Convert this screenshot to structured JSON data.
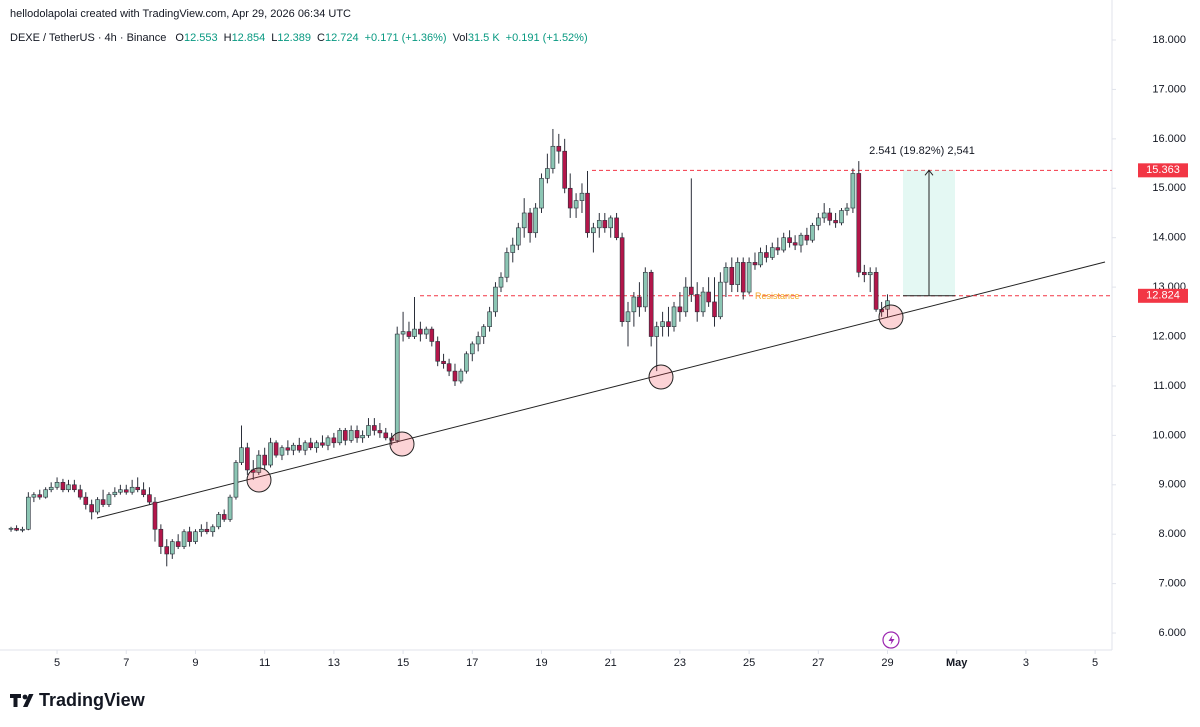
{
  "header": {
    "credit": "hellodolapolai created with TradingView.com, Apr 29, 2026 06:34 UTC",
    "symbol": "DEXE / TetherUS · 4h · Binance",
    "ohlc": [
      {
        "label": "O",
        "value": 12.553
      },
      {
        "label": "H",
        "value": 12.854
      },
      {
        "label": "L",
        "value": 12.389
      },
      {
        "label": "C",
        "value": 12.724
      }
    ],
    "change": "+0.171 (+1.36%)",
    "volume_label": "Vol",
    "volume": "31.5 K",
    "volume_change": "+0.191 (+1.52%)"
  },
  "brand": "TradingView",
  "chart_data": {
    "type": "candlestick",
    "up_color": "#8cc6b4",
    "down_color": "#b3164a",
    "xlim": [
      3.64,
      35.43
    ],
    "ylim": [
      5.657,
      18.243
    ],
    "xticks": [
      5,
      7,
      9,
      11,
      13,
      15,
      17,
      19,
      21,
      23,
      25,
      27,
      29,
      {
        "value": 31,
        "label": "May"
      },
      {
        "value": 33,
        "label": "3"
      },
      {
        "value": 35,
        "label": "5"
      }
    ],
    "yticks": [
      {
        "value": 6,
        "label": "6.000"
      },
      {
        "value": 7,
        "label": "7.000"
      },
      {
        "value": 8,
        "label": "8.000"
      },
      {
        "value": 9,
        "label": "9.000"
      },
      {
        "value": 10,
        "label": "10.000"
      },
      {
        "value": 11,
        "label": "11.000"
      },
      {
        "value": 12,
        "label": "12.000"
      },
      {
        "value": 13,
        "label": "13.000"
      },
      {
        "value": 14,
        "label": "14.000"
      },
      {
        "value": 15,
        "label": "15.000"
      },
      {
        "value": 16,
        "label": "16.000"
      },
      {
        "value": 17,
        "label": "17.000"
      },
      {
        "value": 18,
        "label": "18.000"
      }
    ],
    "levels": [
      15.363,
      12.824
    ],
    "level_color": "#f23645",
    "annotations": {
      "measure": "2.541 (19.82%) 2,541",
      "resistance": "Resistance"
    },
    "x": [
      3.67,
      3.83,
      4,
      4.17,
      4.33,
      4.5,
      4.67,
      4.83,
      5,
      5.17,
      5.33,
      5.5,
      5.67,
      5.83,
      6,
      6.17,
      6.33,
      6.5,
      6.67,
      6.83,
      7,
      7.17,
      7.33,
      7.5,
      7.67,
      7.83,
      8,
      8.17,
      8.33,
      8.5,
      8.67,
      8.83,
      9,
      9.17,
      9.33,
      9.5,
      9.67,
      9.83,
      10,
      10.17,
      10.33,
      10.5,
      10.67,
      10.83,
      11,
      11.17,
      11.33,
      11.5,
      11.67,
      11.83,
      12,
      12.17,
      12.33,
      12.5,
      12.67,
      12.83,
      13,
      13.17,
      13.33,
      13.5,
      13.67,
      13.83,
      14,
      14.17,
      14.33,
      14.5,
      14.67,
      14.83,
      15,
      15.17,
      15.33,
      15.5,
      15.67,
      15.83,
      16,
      16.17,
      16.33,
      16.5,
      16.67,
      16.83,
      17,
      17.17,
      17.33,
      17.5,
      17.67,
      17.83,
      18,
      18.17,
      18.33,
      18.5,
      18.67,
      18.83,
      19,
      19.17,
      19.33,
      19.5,
      19.67,
      19.83,
      20,
      20.17,
      20.33,
      20.5,
      20.67,
      20.83,
      21,
      21.17,
      21.33,
      21.5,
      21.67,
      21.83,
      22,
      22.17,
      22.33,
      22.5,
      22.67,
      22.83,
      23,
      23.17,
      23.33,
      23.5,
      23.67,
      23.83,
      24,
      24.17,
      24.33,
      24.5,
      24.67,
      24.83,
      25,
      25.17,
      25.33,
      25.5,
      25.67,
      25.83,
      26,
      26.17,
      26.33,
      26.5,
      26.67,
      26.83,
      27,
      27.17,
      27.33,
      27.5,
      27.67,
      27.83,
      28,
      28.17,
      28.33,
      28.5,
      28.67,
      28.83,
      29
    ],
    "candles": [
      [
        8.1,
        8.15,
        8.05,
        8.12
      ],
      [
        8.12,
        8.18,
        8.06,
        8.08
      ],
      [
        8.08,
        8.15,
        8.04,
        8.1
      ],
      [
        8.1,
        8.85,
        8.08,
        8.75
      ],
      [
        8.75,
        8.85,
        8.65,
        8.8
      ],
      [
        8.8,
        8.9,
        8.7,
        8.75
      ],
      [
        8.75,
        8.95,
        8.72,
        8.9
      ],
      [
        8.9,
        9.05,
        8.85,
        8.95
      ],
      [
        8.95,
        9.15,
        8.9,
        9.05
      ],
      [
        9.05,
        9.12,
        8.85,
        8.9
      ],
      [
        8.9,
        9.1,
        8.85,
        9.0
      ],
      [
        9.0,
        9.1,
        8.85,
        8.9
      ],
      [
        8.9,
        9.0,
        8.7,
        8.75
      ],
      [
        8.75,
        8.85,
        8.5,
        8.6
      ],
      [
        8.6,
        8.7,
        8.3,
        8.45
      ],
      [
        8.45,
        8.75,
        8.4,
        8.7
      ],
      [
        8.7,
        8.9,
        8.55,
        8.6
      ],
      [
        8.6,
        8.85,
        8.55,
        8.8
      ],
      [
        8.8,
        8.95,
        8.75,
        8.85
      ],
      [
        8.85,
        9.0,
        8.8,
        8.9
      ],
      [
        8.9,
        9.0,
        8.8,
        8.85
      ],
      [
        8.85,
        9.1,
        8.8,
        8.95
      ],
      [
        8.95,
        9.15,
        8.85,
        8.9
      ],
      [
        8.9,
        9.05,
        8.75,
        8.8
      ],
      [
        8.8,
        8.95,
        8.6,
        8.65
      ],
      [
        8.65,
        8.75,
        7.85,
        8.1
      ],
      [
        8.1,
        8.2,
        7.6,
        7.75
      ],
      [
        7.75,
        7.9,
        7.35,
        7.6
      ],
      [
        7.6,
        7.9,
        7.5,
        7.85
      ],
      [
        7.85,
        8.0,
        7.7,
        7.75
      ],
      [
        7.75,
        8.1,
        7.7,
        8.05
      ],
      [
        8.05,
        8.15,
        7.75,
        7.85
      ],
      [
        7.85,
        8.1,
        7.8,
        8.05
      ],
      [
        8.05,
        8.2,
        7.95,
        8.1
      ],
      [
        8.1,
        8.25,
        8.0,
        8.05
      ],
      [
        8.05,
        8.2,
        7.95,
        8.15
      ],
      [
        8.15,
        8.45,
        8.1,
        8.4
      ],
      [
        8.4,
        8.5,
        8.25,
        8.3
      ],
      [
        8.3,
        8.8,
        8.25,
        8.75
      ],
      [
        8.75,
        9.5,
        8.7,
        9.45
      ],
      [
        9.45,
        10.2,
        9.4,
        9.75
      ],
      [
        9.75,
        9.85,
        9.2,
        9.3
      ],
      [
        9.3,
        9.5,
        9.1,
        9.25
      ],
      [
        9.25,
        9.7,
        9.2,
        9.6
      ],
      [
        9.6,
        9.75,
        9.3,
        9.4
      ],
      [
        9.4,
        9.95,
        9.35,
        9.85
      ],
      [
        9.85,
        9.9,
        9.55,
        9.6
      ],
      [
        9.6,
        9.8,
        9.5,
        9.75
      ],
      [
        9.75,
        9.9,
        9.6,
        9.7
      ],
      [
        9.7,
        9.85,
        9.6,
        9.8
      ],
      [
        9.8,
        9.95,
        9.65,
        9.7
      ],
      [
        9.7,
        9.9,
        9.6,
        9.85
      ],
      [
        9.85,
        9.95,
        9.7,
        9.75
      ],
      [
        9.75,
        9.9,
        9.65,
        9.85
      ],
      [
        9.85,
        10.0,
        9.75,
        9.8
      ],
      [
        9.8,
        10.0,
        9.7,
        9.95
      ],
      [
        9.95,
        10.05,
        9.75,
        9.85
      ],
      [
        9.85,
        10.15,
        9.8,
        10.1
      ],
      [
        10.1,
        10.15,
        9.8,
        9.9
      ],
      [
        9.9,
        10.2,
        9.85,
        10.1
      ],
      [
        10.1,
        10.2,
        9.85,
        9.95
      ],
      [
        9.95,
        10.1,
        9.85,
        10.0
      ],
      [
        10.0,
        10.35,
        9.95,
        10.2
      ],
      [
        10.2,
        10.35,
        10.0,
        10.1
      ],
      [
        10.1,
        10.25,
        9.95,
        10.05
      ],
      [
        10.05,
        10.15,
        9.9,
        9.95
      ],
      [
        9.95,
        10.05,
        9.8,
        9.9
      ],
      [
        9.9,
        12.2,
        9.85,
        12.05
      ],
      [
        12.05,
        12.5,
        11.9,
        12.1
      ],
      [
        12.1,
        12.3,
        11.95,
        12.0
      ],
      [
        12.0,
        12.8,
        11.95,
        12.15
      ],
      [
        12.15,
        12.3,
        11.9,
        12.05
      ],
      [
        12.05,
        12.2,
        11.95,
        12.15
      ],
      [
        12.15,
        12.2,
        11.8,
        11.9
      ],
      [
        11.9,
        12.0,
        11.4,
        11.5
      ],
      [
        11.5,
        11.65,
        11.35,
        11.45
      ],
      [
        11.45,
        11.55,
        11.2,
        11.3
      ],
      [
        11.3,
        11.45,
        11.0,
        11.1
      ],
      [
        11.1,
        11.35,
        11.05,
        11.3
      ],
      [
        11.3,
        11.7,
        11.25,
        11.65
      ],
      [
        11.65,
        11.9,
        11.5,
        11.85
      ],
      [
        11.85,
        12.1,
        11.7,
        12.0
      ],
      [
        12.0,
        12.25,
        11.85,
        12.2
      ],
      [
        12.2,
        12.6,
        12.1,
        12.5
      ],
      [
        12.5,
        13.1,
        12.4,
        13.0
      ],
      [
        13.0,
        13.3,
        12.9,
        13.2
      ],
      [
        13.2,
        13.8,
        13.1,
        13.7
      ],
      [
        13.7,
        14.0,
        13.5,
        13.85
      ],
      [
        13.85,
        14.3,
        13.75,
        14.2
      ],
      [
        14.2,
        14.8,
        14.0,
        14.5
      ],
      [
        14.5,
        14.6,
        13.9,
        14.1
      ],
      [
        14.1,
        14.7,
        14.0,
        14.6
      ],
      [
        14.6,
        15.3,
        14.5,
        15.2
      ],
      [
        15.2,
        15.7,
        15.1,
        15.4
      ],
      [
        15.4,
        16.2,
        15.3,
        15.85
      ],
      [
        15.85,
        16.1,
        15.5,
        15.75
      ],
      [
        15.75,
        16.0,
        14.9,
        15.0
      ],
      [
        15.0,
        15.3,
        14.4,
        14.6
      ],
      [
        14.6,
        14.9,
        14.4,
        14.75
      ],
      [
        14.75,
        15.1,
        14.5,
        14.9
      ],
      [
        14.9,
        15.35,
        14.0,
        14.1
      ],
      [
        14.1,
        14.3,
        13.7,
        14.2
      ],
      [
        14.2,
        14.5,
        14.0,
        14.35
      ],
      [
        14.35,
        14.5,
        14.1,
        14.2
      ],
      [
        14.2,
        14.45,
        14.0,
        14.4
      ],
      [
        14.4,
        14.5,
        13.95,
        14.0
      ],
      [
        14.0,
        14.1,
        12.2,
        12.3
      ],
      [
        12.3,
        12.7,
        11.8,
        12.5
      ],
      [
        12.5,
        12.9,
        12.2,
        12.8
      ],
      [
        12.8,
        13.1,
        12.4,
        12.6
      ],
      [
        12.6,
        13.4,
        12.5,
        13.3
      ],
      [
        13.3,
        13.35,
        11.8,
        12.0
      ],
      [
        12.0,
        12.3,
        11.3,
        12.2
      ],
      [
        12.2,
        12.5,
        12.0,
        12.3
      ],
      [
        12.3,
        12.6,
        12.0,
        12.2
      ],
      [
        12.2,
        12.7,
        12.1,
        12.6
      ],
      [
        12.6,
        12.9,
        12.3,
        12.5
      ],
      [
        12.5,
        13.2,
        12.4,
        13.0
      ],
      [
        13.0,
        15.2,
        12.7,
        12.85
      ],
      [
        12.85,
        13.1,
        12.3,
        12.5
      ],
      [
        12.5,
        13.0,
        12.4,
        12.9
      ],
      [
        12.9,
        13.2,
        12.6,
        12.7
      ],
      [
        12.7,
        13.2,
        12.2,
        12.4
      ],
      [
        12.4,
        13.3,
        12.35,
        13.1
      ],
      [
        13.1,
        13.5,
        12.8,
        13.4
      ],
      [
        13.4,
        13.6,
        12.9,
        13.05
      ],
      [
        13.05,
        13.6,
        12.9,
        13.5
      ],
      [
        13.5,
        13.6,
        12.75,
        12.9
      ],
      [
        12.9,
        13.6,
        12.85,
        13.5
      ],
      [
        13.5,
        13.7,
        13.35,
        13.45
      ],
      [
        13.45,
        13.8,
        13.4,
        13.7
      ],
      [
        13.7,
        13.85,
        13.5,
        13.6
      ],
      [
        13.6,
        13.9,
        13.55,
        13.8
      ],
      [
        13.8,
        14.0,
        13.65,
        13.75
      ],
      [
        13.75,
        14.1,
        13.7,
        14.0
      ],
      [
        14.0,
        14.15,
        13.8,
        13.9
      ],
      [
        13.9,
        14.05,
        13.75,
        13.85
      ],
      [
        13.85,
        14.1,
        13.7,
        14.05
      ],
      [
        14.05,
        14.2,
        13.85,
        13.95
      ],
      [
        13.95,
        14.3,
        13.9,
        14.25
      ],
      [
        14.25,
        14.5,
        14.15,
        14.4
      ],
      [
        14.4,
        14.7,
        14.3,
        14.5
      ],
      [
        14.5,
        14.6,
        14.25,
        14.35
      ],
      [
        14.35,
        14.5,
        14.2,
        14.3
      ],
      [
        14.3,
        14.6,
        14.25,
        14.55
      ],
      [
        14.55,
        14.7,
        14.45,
        14.6
      ],
      [
        14.6,
        15.4,
        14.5,
        15.3
      ],
      [
        15.3,
        15.55,
        13.2,
        13.3
      ],
      [
        13.3,
        13.45,
        13.1,
        13.25
      ],
      [
        13.25,
        13.4,
        12.9,
        13.3
      ],
      [
        13.3,
        13.4,
        12.5,
        12.55
      ],
      [
        12.55,
        12.7,
        12.4,
        12.5
      ],
      [
        12.553,
        12.854,
        12.389,
        12.724
      ]
    ]
  }
}
